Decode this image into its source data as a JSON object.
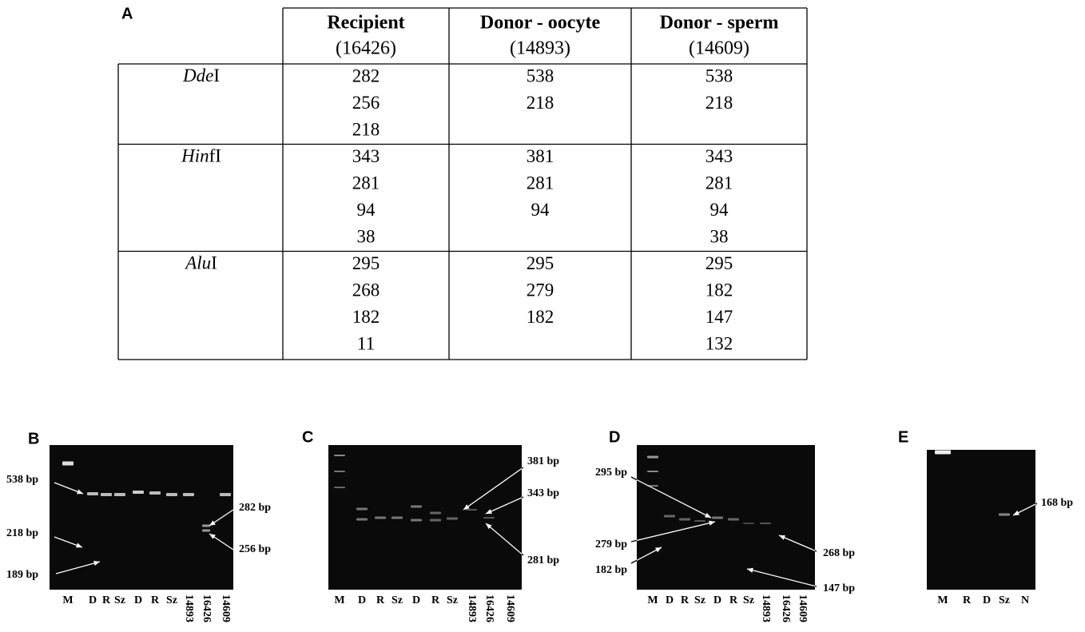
{
  "table": {
    "label": "A",
    "columns": [
      {
        "title": "Recipient",
        "subtitle": "(16426)"
      },
      {
        "title": "Donor - oocyte",
        "subtitle": "(14893)"
      },
      {
        "title": "Donor - sperm",
        "subtitle": "(14609)"
      }
    ],
    "groups": [
      {
        "enzyme_italic": "Dde",
        "enzyme_suffix": "I",
        "values": [
          [
            282,
            256,
            218
          ],
          [
            538,
            218
          ],
          [
            538,
            218
          ]
        ]
      },
      {
        "enzyme_italic": "Hin",
        "enzyme_suffix": "fI",
        "values": [
          [
            343,
            281,
            94,
            38
          ],
          [
            381,
            281,
            94
          ],
          [
            343,
            281,
            94,
            38
          ]
        ]
      },
      {
        "enzyme_italic": "Alu",
        "enzyme_suffix": "I",
        "values": [
          [
            295,
            268,
            182,
            11
          ],
          [
            295,
            279,
            182
          ],
          [
            295,
            182,
            147,
            132
          ]
        ]
      }
    ]
  },
  "gels": [
    {
      "label": "B",
      "lanes": [
        "M",
        "D",
        "R",
        "Sz",
        "D",
        "R",
        "Sz",
        "14893",
        "16426",
        "14609"
      ],
      "annotations": [
        "538 bp",
        "218 bp",
        "189 bp",
        "282 bp",
        "256 bp"
      ]
    },
    {
      "label": "C",
      "lanes": [
        "M",
        "D",
        "R",
        "Sz",
        "D",
        "R",
        "Sz",
        "14893",
        "16426",
        "14609"
      ],
      "annotations": [
        "381 bp",
        "343 bp",
        "281 bp"
      ]
    },
    {
      "label": "D",
      "lanes": [
        "M",
        "D",
        "R",
        "Sz",
        "D",
        "R",
        "Sz",
        "14893",
        "16426",
        "14609"
      ],
      "annotations": [
        "295 bp",
        "279 bp",
        "182 bp",
        "268 bp",
        "147 bp"
      ]
    },
    {
      "label": "E",
      "lanes": [
        "M",
        "R",
        "D",
        "Sz",
        "N"
      ],
      "annotations": [
        "168 bp"
      ]
    }
  ]
}
